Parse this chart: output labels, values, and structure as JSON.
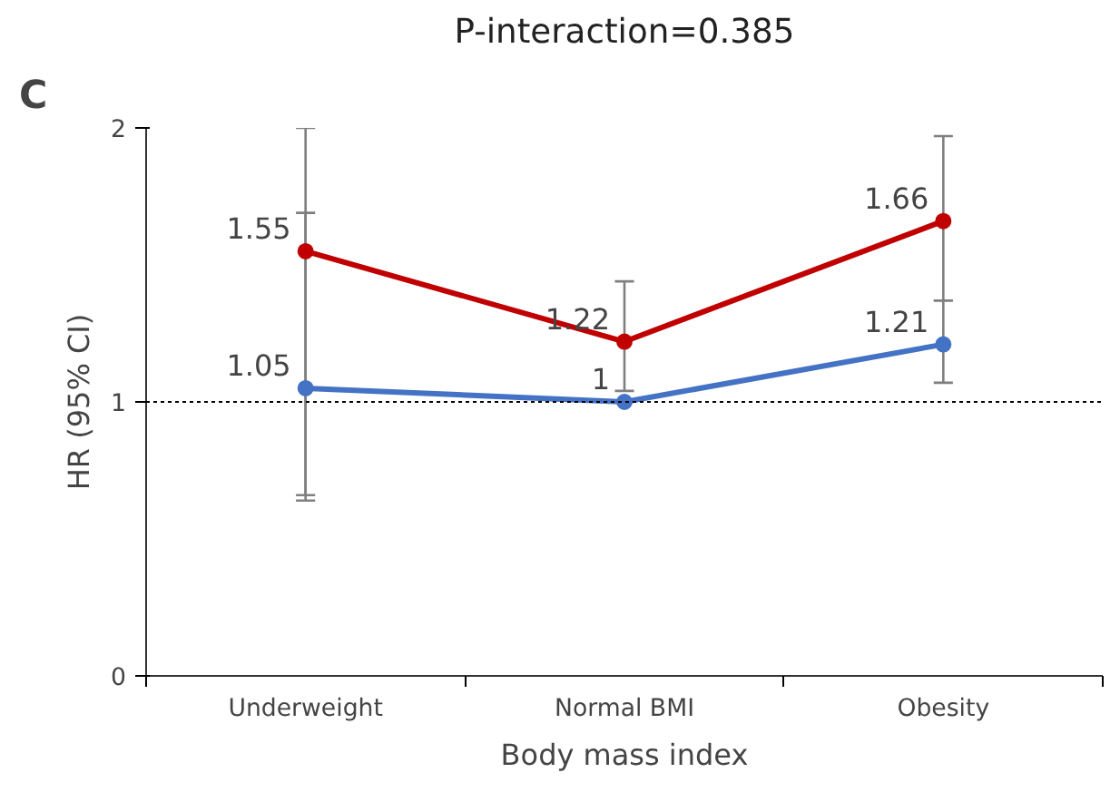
{
  "chart_data": {
    "type": "line",
    "title": "P-interaction=0.385",
    "xlabel": "Body mass index",
    "ylabel": "HR (95% CI)",
    "annotations": [
      "C"
    ],
    "categories": [
      "Underweight",
      "Normal BMI",
      "Obesity"
    ],
    "ylim": [
      0,
      2
    ],
    "yticks": [
      0,
      1,
      2
    ],
    "grid": false,
    "marker": "circle",
    "line_style": "solid",
    "data_labels": true,
    "ref_lines": [
      {
        "axis": "y",
        "value": 1,
        "color": "#000000",
        "line_style": "dotted"
      }
    ],
    "series": [
      {
        "color": "#c00000",
        "values": [
          1.55,
          1.22,
          1.66
        ],
        "errors": [
          [
            0.66,
            2.0
          ],
          [
            1.04,
            1.44
          ],
          [
            1.37,
            1.97
          ]
        ]
      },
      {
        "color": "#4472c4",
        "values": [
          1.05,
          1,
          1.21
        ],
        "errors": [
          [
            0.64,
            1.69
          ],
          null,
          [
            1.07,
            1.37
          ]
        ]
      }
    ]
  }
}
